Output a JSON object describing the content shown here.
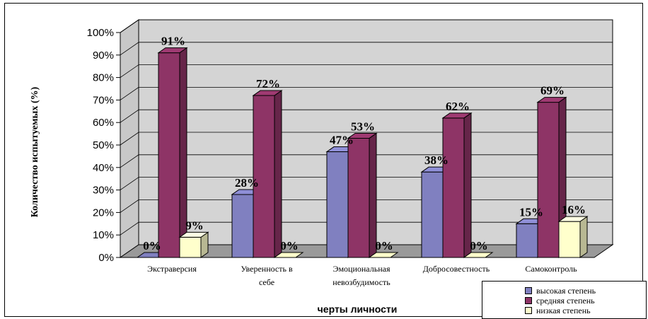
{
  "chart_data": {
    "type": "bar",
    "title": "",
    "xlabel": "черты личности",
    "ylabel": "Количество испытуемых (%)",
    "ylim": [
      0,
      100
    ],
    "yticks": [
      "0%",
      "10%",
      "20%",
      "30%",
      "40%",
      "50%",
      "60%",
      "70%",
      "80%",
      "90%",
      "100%"
    ],
    "categories": [
      [
        "Экстраверсия"
      ],
      [
        "Уверенность в",
        "себе"
      ],
      [
        "Эмоциональная",
        "невозбудимость"
      ],
      [
        "Добросовестность"
      ],
      [
        "Самоконтроль"
      ]
    ],
    "series": [
      {
        "name": "высокая степень",
        "values": [
          0,
          28,
          47,
          38,
          15
        ],
        "labels": [
          "0%",
          "28%",
          "47%",
          "38%",
          "15%"
        ],
        "color": "#8080C0"
      },
      {
        "name": "средняя степень",
        "values": [
          91,
          72,
          53,
          62,
          69
        ],
        "labels": [
          "91%",
          "72%",
          "53%",
          "62%",
          "69%"
        ],
        "color": "#8E3466"
      },
      {
        "name": "низкая степень",
        "values": [
          9,
          0,
          0,
          0,
          16
        ],
        "labels": [
          "9%",
          "0%",
          "0%",
          "0%",
          "16%"
        ],
        "color": "#FFFFCC"
      }
    ],
    "grid": true,
    "legend_position": "bottom-right",
    "projection": "3d-clustered-column"
  }
}
